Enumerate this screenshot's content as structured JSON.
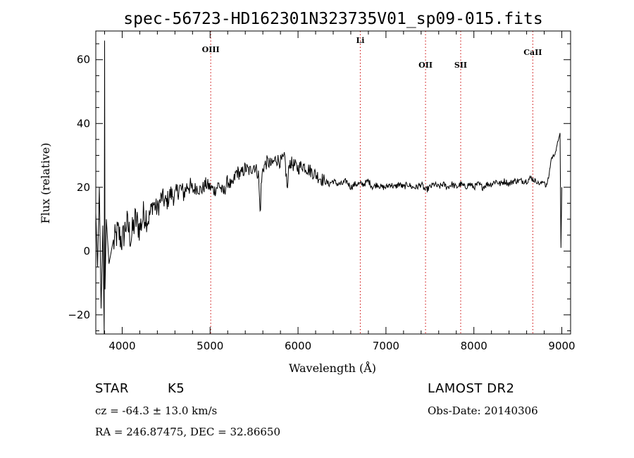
{
  "header": {
    "title": "spec-56723-HD162301N323735V01_sp09-015.fits"
  },
  "footer": {
    "object_type": "STAR",
    "subclass": "K5",
    "survey": "LAMOST DR2",
    "redshift": "cz = -64.3 ± 13.0 km/s",
    "obs_date": "Obs-Date: 20140306",
    "coords": "RA = 246.87475, DEC =  32.86650"
  },
  "chart_data": {
    "type": "line",
    "title": "spec-56723-HD162301N323735V01_sp09-015.fits",
    "xlabel": "Wavelength (Å)",
    "ylabel": "Flux (relative)",
    "xlim": [
      3700,
      9100
    ],
    "ylim": [
      -26,
      69
    ],
    "xticks": [
      4000,
      5000,
      6000,
      7000,
      8000,
      9000
    ],
    "yticks": [
      -20,
      0,
      20,
      40,
      60
    ],
    "grid": false,
    "line_color": "#000000",
    "marker_color": "#cc0000",
    "emission_lines": [
      {
        "name": "OIII",
        "wavelength": 5007
      },
      {
        "name": "Li",
        "wavelength": 6708
      },
      {
        "name": "OII",
        "wavelength": 7450
      },
      {
        "name": "SII",
        "wavelength": 7850
      },
      {
        "name": "CaII",
        "wavelength": 8670
      }
    ],
    "series": [
      {
        "x": [
          3700,
          3720,
          3740,
          3760,
          3780,
          3795,
          3800,
          3805,
          3820,
          3850,
          3900,
          3950,
          4000,
          4050,
          4100,
          4150,
          4200,
          4250,
          4300,
          4350,
          4400,
          4450,
          4500,
          4550,
          4600,
          4650,
          4700,
          4750,
          4800,
          4850,
          4900,
          4950,
          5000,
          5050,
          5100,
          5150,
          5200,
          5250,
          5300,
          5350,
          5400,
          5450,
          5500,
          5550,
          5570,
          5580,
          5600,
          5650,
          5700,
          5750,
          5800,
          5850,
          5880,
          5900,
          5950,
          6000,
          6050,
          6100,
          6150,
          6200,
          6250,
          6300,
          6350,
          6400,
          6450,
          6500,
          6550,
          6600,
          6650,
          6700,
          6750,
          6800,
          6850,
          6900,
          6950,
          7000,
          7050,
          7100,
          7150,
          7200,
          7250,
          7300,
          7350,
          7400,
          7450,
          7500,
          7550,
          7600,
          7650,
          7700,
          7750,
          7800,
          7850,
          7900,
          7950,
          8000,
          8050,
          8100,
          8150,
          8200,
          8250,
          8300,
          8350,
          8400,
          8450,
          8500,
          8550,
          8600,
          8650,
          8700,
          8750,
          8800,
          8820,
          8850,
          8880,
          8910,
          8940,
          8960,
          8980,
          8990,
          9000
        ],
        "y": [
          12,
          -5,
          20,
          -18,
          8,
          -26,
          66,
          -12,
          10,
          -4,
          2,
          6,
          3,
          9,
          4,
          10,
          7,
          12,
          10,
          15,
          13,
          17,
          15,
          18,
          17,
          20,
          18,
          21,
          19,
          20,
          19,
          21,
          20,
          19,
          21,
          18,
          22,
          20,
          25,
          24,
          26,
          25,
          27,
          24,
          11,
          20,
          26,
          28,
          27,
          29,
          28,
          29,
          19,
          28,
          27,
          26,
          27,
          26,
          25,
          24,
          23,
          22,
          21,
          22,
          21,
          21,
          22,
          20,
          21,
          21,
          21,
          22,
          20,
          21,
          20,
          20,
          21,
          20,
          21,
          20,
          21,
          20,
          20,
          21,
          19,
          20,
          21,
          20,
          21,
          20,
          21,
          20,
          21,
          20,
          21,
          20,
          21,
          20,
          21,
          21,
          22,
          21,
          22,
          21,
          22,
          22,
          22,
          22,
          23,
          22,
          21,
          22,
          20,
          23,
          29,
          30,
          32,
          35,
          37,
          1,
          20
        ]
      }
    ]
  }
}
